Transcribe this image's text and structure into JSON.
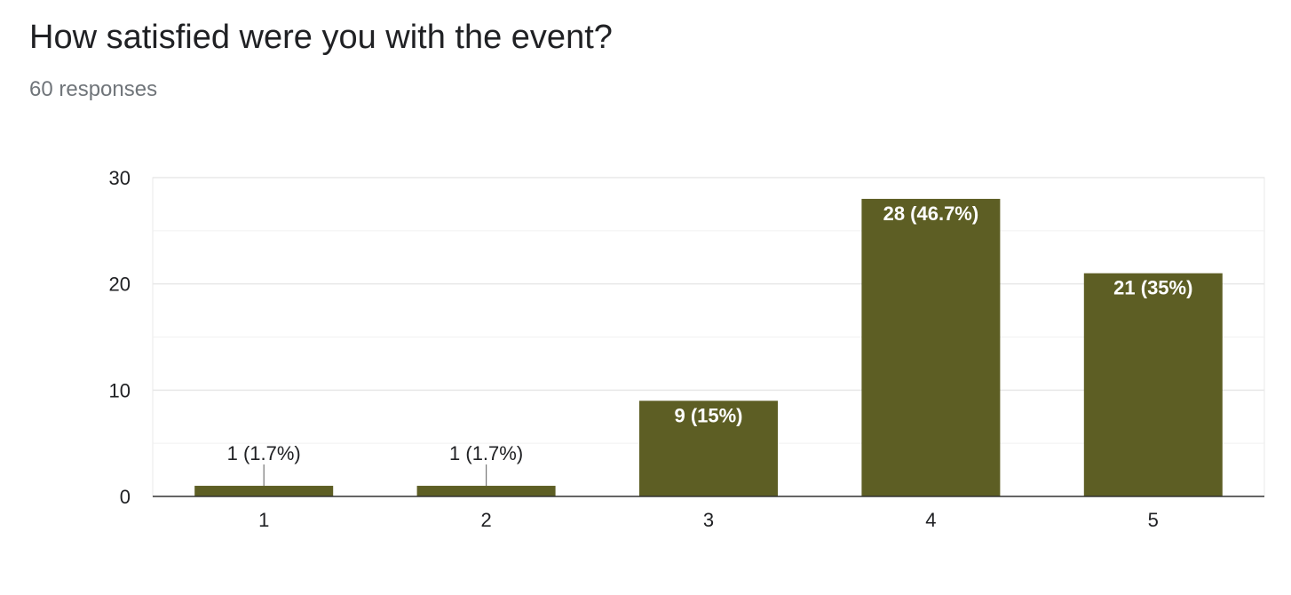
{
  "question": {
    "title": "How satisfied were you with the event?",
    "responses": "60 responses"
  },
  "colors": {
    "bar": "#5d5e24",
    "grid": "#e8e8e8",
    "minor_grid": "#f1f1f1",
    "axis": "#333333",
    "leader": "#777777"
  },
  "chart_data": {
    "type": "bar",
    "categories": [
      "1",
      "2",
      "3",
      "4",
      "5"
    ],
    "values": [
      1,
      1,
      9,
      28,
      21
    ],
    "data_labels": [
      "1 (1.7%)",
      "1 (1.7%)",
      "9 (15%)",
      "28 (46.7%)",
      "21 (35%)"
    ],
    "yticks": [
      0,
      10,
      20,
      30
    ],
    "ylim": [
      0,
      30
    ],
    "grid": true,
    "legend": "none",
    "title": "",
    "xlabel": "",
    "ylabel": ""
  }
}
